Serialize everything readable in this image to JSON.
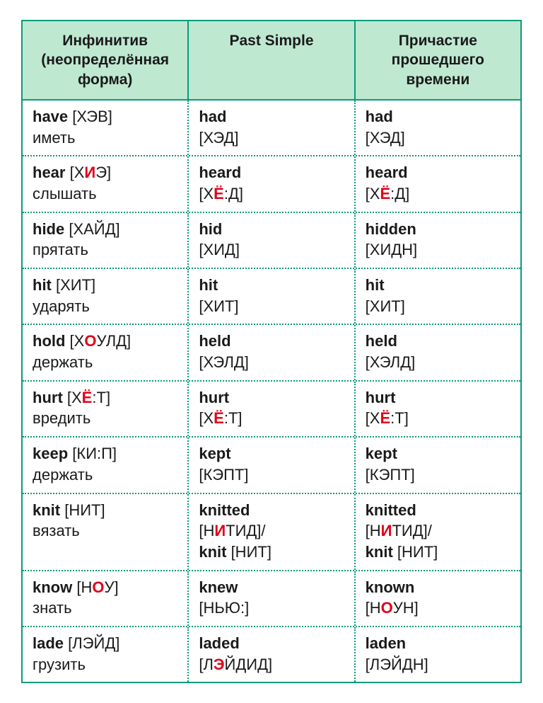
{
  "table": {
    "border_color": "#0a9b7a",
    "header_bg": "#bfe8d1",
    "dot_color": "#0a9b7a",
    "accent_color": "#e2001a",
    "font_size_header": 21,
    "font_size_body": 22,
    "columns": [
      "Инфинитив (неопреде­лённая форма)",
      "Past Simple",
      "Причастие прошедшего времени"
    ],
    "rows": [
      {
        "inf": {
          "word": "have",
          "tr_pre": " [Х",
          "tr_accent": "",
          "tr_post": "ЭВ]",
          "ru": "иметь"
        },
        "past": {
          "word": "had",
          "tr_pre": "[Х",
          "tr_accent": "",
          "tr_post": "ЭД]"
        },
        "pp": {
          "word": "had",
          "tr_pre": "[Х",
          "tr_accent": "",
          "tr_post": "ЭД]"
        }
      },
      {
        "inf": {
          "word": "hear",
          "tr_pre": " [Х",
          "tr_accent": "И",
          "tr_post": "Э]",
          "ru": "слышать"
        },
        "past": {
          "word": "heard",
          "tr_pre": "[Х",
          "tr_accent": "Ё",
          "tr_post": ":Д]"
        },
        "pp": {
          "word": "heard",
          "tr_pre": "[Х",
          "tr_accent": "Ё",
          "tr_post": ":Д]"
        }
      },
      {
        "inf": {
          "word": "hide",
          "tr_pre": " [Х",
          "tr_accent": "",
          "tr_post": "АЙД]",
          "ru": "прятать"
        },
        "past": {
          "word": "hid",
          "tr_pre": "[Х",
          "tr_accent": "",
          "tr_post": "ИД]"
        },
        "pp": {
          "word": "hidden",
          "tr_pre": "[Х",
          "tr_accent": "",
          "tr_post": "ИДН]"
        }
      },
      {
        "inf": {
          "word": "hit",
          "tr_pre": " [Х",
          "tr_accent": "",
          "tr_post": "ИТ]",
          "ru": "ударять"
        },
        "past": {
          "word": "hit",
          "tr_pre": "[Х",
          "tr_accent": "",
          "tr_post": "ИТ]"
        },
        "pp": {
          "word": "hit",
          "tr_pre": "[Х",
          "tr_accent": "",
          "tr_post": "ИТ]"
        }
      },
      {
        "inf": {
          "word": "hold",
          "tr_pre": " [Х",
          "tr_accent": "О",
          "tr_post": "УЛД]",
          "ru": "держать"
        },
        "past": {
          "word": "held",
          "tr_pre": "[Х",
          "tr_accent": "",
          "tr_post": "ЭЛД]"
        },
        "pp": {
          "word": "held",
          "tr_pre": "[Х",
          "tr_accent": "",
          "tr_post": "ЭЛД]"
        }
      },
      {
        "inf": {
          "word": "hurt",
          "tr_pre": " [Х",
          "tr_accent": "Ё",
          "tr_post": ":Т]",
          "ru": "вредить"
        },
        "past": {
          "word": "hurt",
          "tr_pre": "[Х",
          "tr_accent": "Ё",
          "tr_post": ":Т]"
        },
        "pp": {
          "word": "hurt",
          "tr_pre": "[Х",
          "tr_accent": "Ё",
          "tr_post": ":Т]"
        }
      },
      {
        "inf": {
          "word": "keep",
          "tr_pre": " [К",
          "tr_accent": "",
          "tr_post": "И:П]",
          "ru": "держать"
        },
        "past": {
          "word": "kept",
          "tr_pre": "[К",
          "tr_accent": "",
          "tr_post": "ЭПТ]"
        },
        "pp": {
          "word": "kept",
          "tr_pre": "[К",
          "tr_accent": "",
          "tr_post": "ЭПТ]"
        }
      },
      {
        "inf": {
          "word": "knit",
          "tr_pre": " [Н",
          "tr_accent": "",
          "tr_post": "ИТ]",
          "ru": "вязать"
        },
        "past": {
          "word": "knitted",
          "tr_pre": "[Н",
          "tr_accent": "И",
          "tr_post": "ТИД]/",
          "word2": "knit",
          "tr2_pre": " [Н",
          "tr2_accent": "",
          "tr2_post": "ИТ]"
        },
        "pp": {
          "word": "knitted",
          "tr_pre": "[Н",
          "tr_accent": "И",
          "tr_post": "ТИД]/",
          "word2": "knit",
          "tr2_pre": " [Н",
          "tr2_accent": "",
          "tr2_post": "ИТ]"
        }
      },
      {
        "inf": {
          "word": "know",
          "tr_pre": " [Н",
          "tr_accent": "О",
          "tr_post": "У]",
          "ru": "знать"
        },
        "past": {
          "word": "knew",
          "tr_pre": "[НЬ",
          "tr_accent": "",
          "tr_post": "Ю:]"
        },
        "pp": {
          "word": "known",
          "tr_pre": "[Н",
          "tr_accent": "О",
          "tr_post": "УН]"
        }
      },
      {
        "inf": {
          "word": "lade",
          "tr_pre": " [Л",
          "tr_accent": "",
          "tr_post": "ЭЙД]",
          "ru": "грузить"
        },
        "past": {
          "word": "laded",
          "tr_pre": "[Л",
          "tr_accent": "Э",
          "tr_post": "ЙДИД]"
        },
        "pp": {
          "word": "laden",
          "tr_pre": "[Л",
          "tr_accent": "",
          "tr_post": "ЭЙДН]"
        }
      }
    ]
  }
}
